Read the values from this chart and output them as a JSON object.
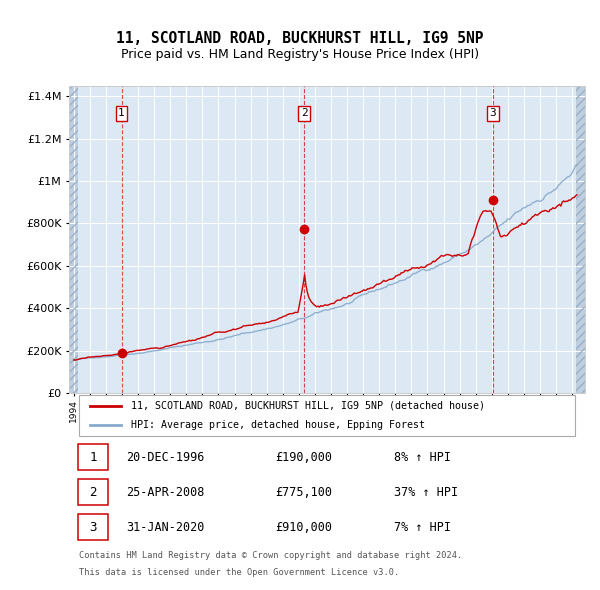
{
  "title": "11, SCOTLAND ROAD, BUCKHURST HILL, IG9 5NP",
  "subtitle": "Price paid vs. HM Land Registry's House Price Index (HPI)",
  "title_fontsize": 10.5,
  "subtitle_fontsize": 9,
  "background_color": "#dce9f5",
  "plot_bg_color": "#dce9f5",
  "hatch_color": "#c0cfe0",
  "red_line_color": "#cc0000",
  "blue_line_color": "#88aacc",
  "sale_dot_color": "#cc0000",
  "sales": [
    {
      "date_num": 1996.97,
      "price": 190000,
      "label": "1"
    },
    {
      "date_num": 2008.32,
      "price": 775100,
      "label": "2"
    },
    {
      "date_num": 2020.08,
      "price": 910000,
      "label": "3"
    }
  ],
  "sale_annotations": [
    {
      "num": "1",
      "date": "20-DEC-1996",
      "price": "£190,000",
      "pct": "8% ↑ HPI"
    },
    {
      "num": "2",
      "date": "25-APR-2008",
      "price": "£775,100",
      "pct": "37% ↑ HPI"
    },
    {
      "num": "3",
      "date": "31-JAN-2020",
      "price": "£910,000",
      "pct": "7% ↑ HPI"
    }
  ],
  "legend_line1": "11, SCOTLAND ROAD, BUCKHURST HILL, IG9 5NP (detached house)",
  "legend_line2": "HPI: Average price, detached house, Epping Forest",
  "footer1": "Contains HM Land Registry data © Crown copyright and database right 2024.",
  "footer2": "This data is licensed under the Open Government Licence v3.0.",
  "xmin": 1993.7,
  "xmax": 2025.8,
  "ymin": 0,
  "ymax": 1450000,
  "yticks": [
    0,
    200000,
    400000,
    600000,
    800000,
    1000000,
    1200000,
    1400000
  ],
  "ytick_labels": [
    "£0",
    "£200K",
    "£400K",
    "£600K",
    "£800K",
    "£1M",
    "£1.2M",
    "£1.4M"
  ]
}
